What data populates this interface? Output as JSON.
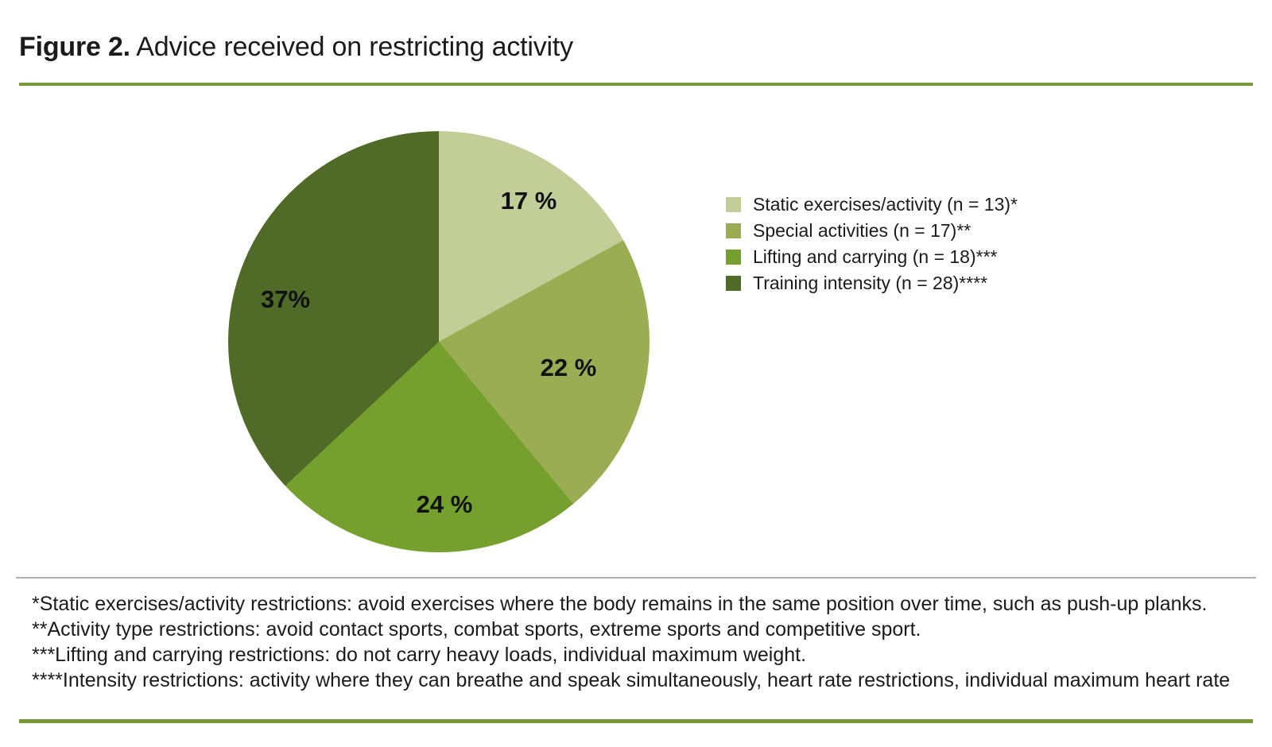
{
  "figure": {
    "title_prefix": "Figure 2.",
    "title_text": " Advice received on restricting activity"
  },
  "chart_data": {
    "type": "pie",
    "title": "Advice received on restricting activity",
    "start_angle_deg": 0,
    "direction": "clockwise",
    "legend_position": "right",
    "slices": [
      {
        "label": "Static exercises/activity (n = 13)*",
        "value_pct": 17,
        "n": 13,
        "display_label": "17 %",
        "color": "#c2cd98"
      },
      {
        "label": "Special activities (n = 17)**",
        "value_pct": 22,
        "n": 17,
        "display_label": "22 %",
        "color": "#9aad52"
      },
      {
        "label": "Lifting and carrying (n = 18)***",
        "value_pct": 24,
        "n": 18,
        "display_label": "24 %",
        "color": "#75a02d"
      },
      {
        "label": "Training intensity (n = 28)****",
        "value_pct": 37,
        "n": 28,
        "display_label": "37%",
        "color": "#4f6b27"
      }
    ]
  },
  "footnotes": {
    "lines": [
      "*Static exercises/activity restrictions: avoid exercises where the body remains in the same position over time, such as push-up planks.",
      "**Activity type restrictions: avoid contact sports, combat sports, extreme sports and competitive sport.",
      "***Lifting and carrying restrictions: do not carry heavy loads, individual maximum weight.",
      "****Intensity restrictions: activity where they can breathe and speak simultaneously, heart rate restrictions, individual maximum heart rate"
    ]
  },
  "colors": {
    "accent_rule": "#78993b",
    "divider": "#b0b0b0",
    "text": "#1b1b1b"
  }
}
